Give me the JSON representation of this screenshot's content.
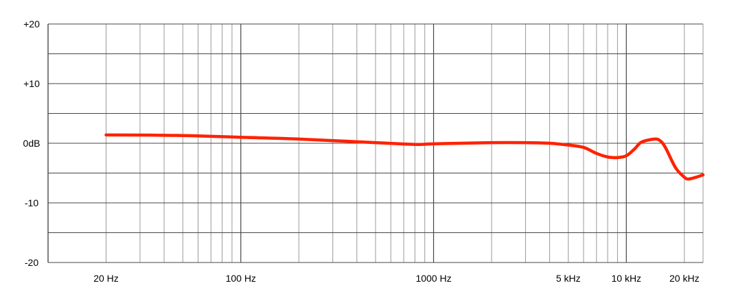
{
  "chart_data": {
    "type": "line",
    "title": "",
    "xlabel": "",
    "ylabel": "",
    "x_scale": "log",
    "xlim": [
      10,
      25000
    ],
    "ylim": [
      -20,
      20
    ],
    "grid": true,
    "x_ticks": [
      {
        "value": 20,
        "label": "20 Hz"
      },
      {
        "value": 100,
        "label": "100 Hz"
      },
      {
        "value": 1000,
        "label": "1000 Hz"
      },
      {
        "value": 5000,
        "label": "5 kHz"
      },
      {
        "value": 10000,
        "label": "10 kHz"
      },
      {
        "value": 20000,
        "label": "20 kHz"
      }
    ],
    "y_ticks": [
      {
        "value": 20,
        "label": "+20"
      },
      {
        "value": 10,
        "label": "+10"
      },
      {
        "value": 0,
        "label": "0dB"
      },
      {
        "value": -10,
        "label": "-10"
      },
      {
        "value": -20,
        "label": "-20"
      }
    ],
    "series": [
      {
        "color": "#ff2200",
        "x": [
          20,
          50,
          100,
          200,
          500,
          800,
          1000,
          2000,
          3000,
          4000,
          5000,
          6000,
          7000,
          8000,
          9000,
          10000,
          11000,
          12000,
          14000,
          15000,
          16000,
          18000,
          20000,
          21000,
          23000,
          25000
        ],
        "y": [
          1.4,
          1.3,
          1.0,
          0.7,
          0.1,
          -0.2,
          -0.1,
          0.1,
          0.1,
          0.0,
          -0.3,
          -0.7,
          -1.7,
          -2.3,
          -2.4,
          -2.1,
          -1.0,
          0.2,
          0.7,
          0.4,
          -0.8,
          -4.1,
          -5.7,
          -6.0,
          -5.7,
          -5.3
        ]
      }
    ]
  }
}
